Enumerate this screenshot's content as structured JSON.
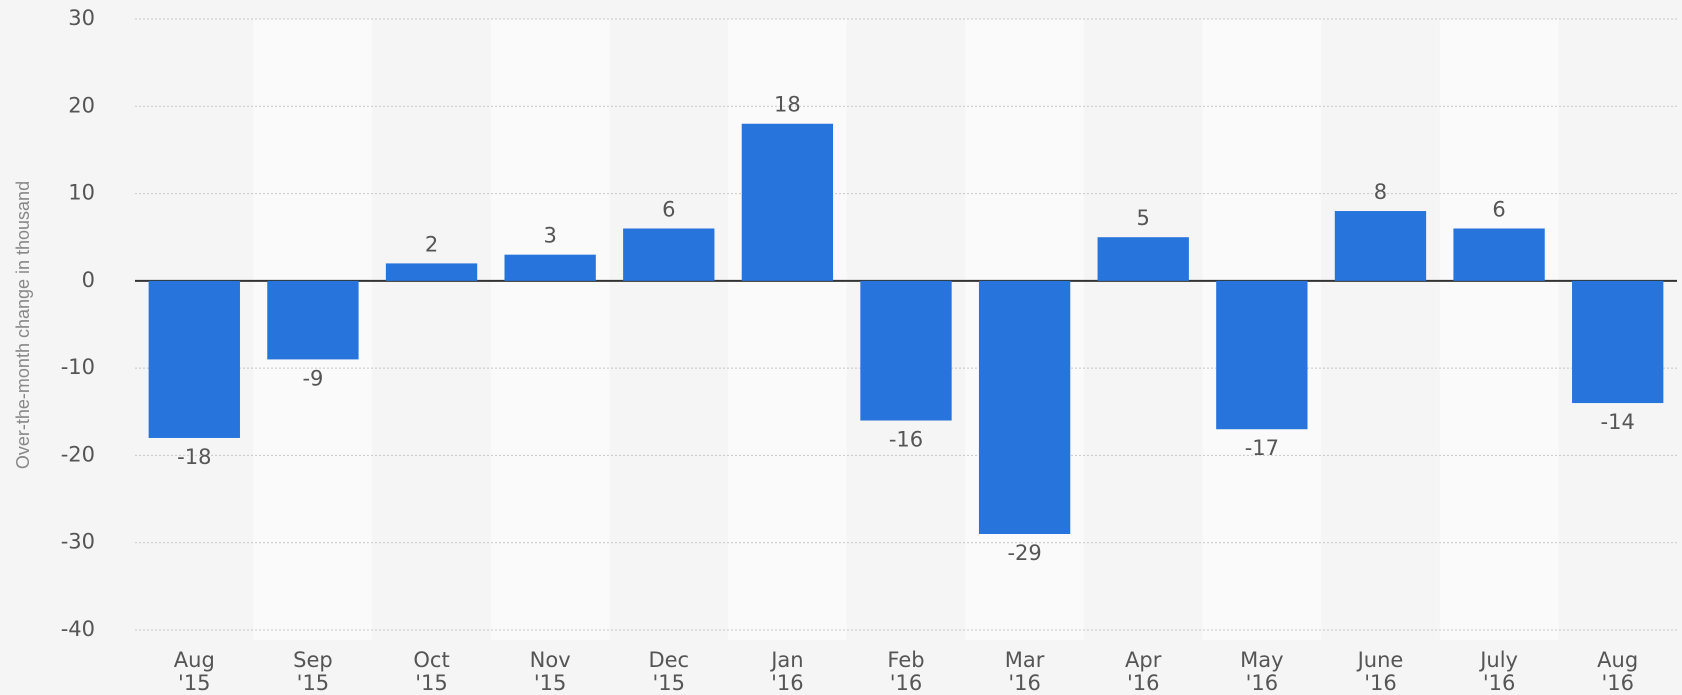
{
  "chart_data": {
    "type": "bar",
    "y_axis_label": "Over-the-month change in thousand",
    "categories": [
      [
        "Aug",
        "'15"
      ],
      [
        "Sep",
        "'15"
      ],
      [
        "Oct",
        "'15"
      ],
      [
        "Nov",
        "'15"
      ],
      [
        "Dec",
        "'15"
      ],
      [
        "Jan",
        "'16"
      ],
      [
        "Feb",
        "'16"
      ],
      [
        "Mar",
        "'16"
      ],
      [
        "Apr",
        "'16"
      ],
      [
        "May",
        "'16"
      ],
      [
        "June",
        "'16"
      ],
      [
        "July",
        "'16"
      ],
      [
        "Aug",
        "'16"
      ]
    ],
    "values": [
      -18,
      -9,
      2,
      3,
      6,
      18,
      -16,
      -29,
      5,
      -17,
      8,
      6,
      -14
    ],
    "color": "#2775dc",
    "ylim": [
      -40,
      30
    ],
    "yticks": [
      -40,
      -30,
      -20,
      -10,
      0,
      10,
      20,
      30
    ],
    "grid": true
  }
}
